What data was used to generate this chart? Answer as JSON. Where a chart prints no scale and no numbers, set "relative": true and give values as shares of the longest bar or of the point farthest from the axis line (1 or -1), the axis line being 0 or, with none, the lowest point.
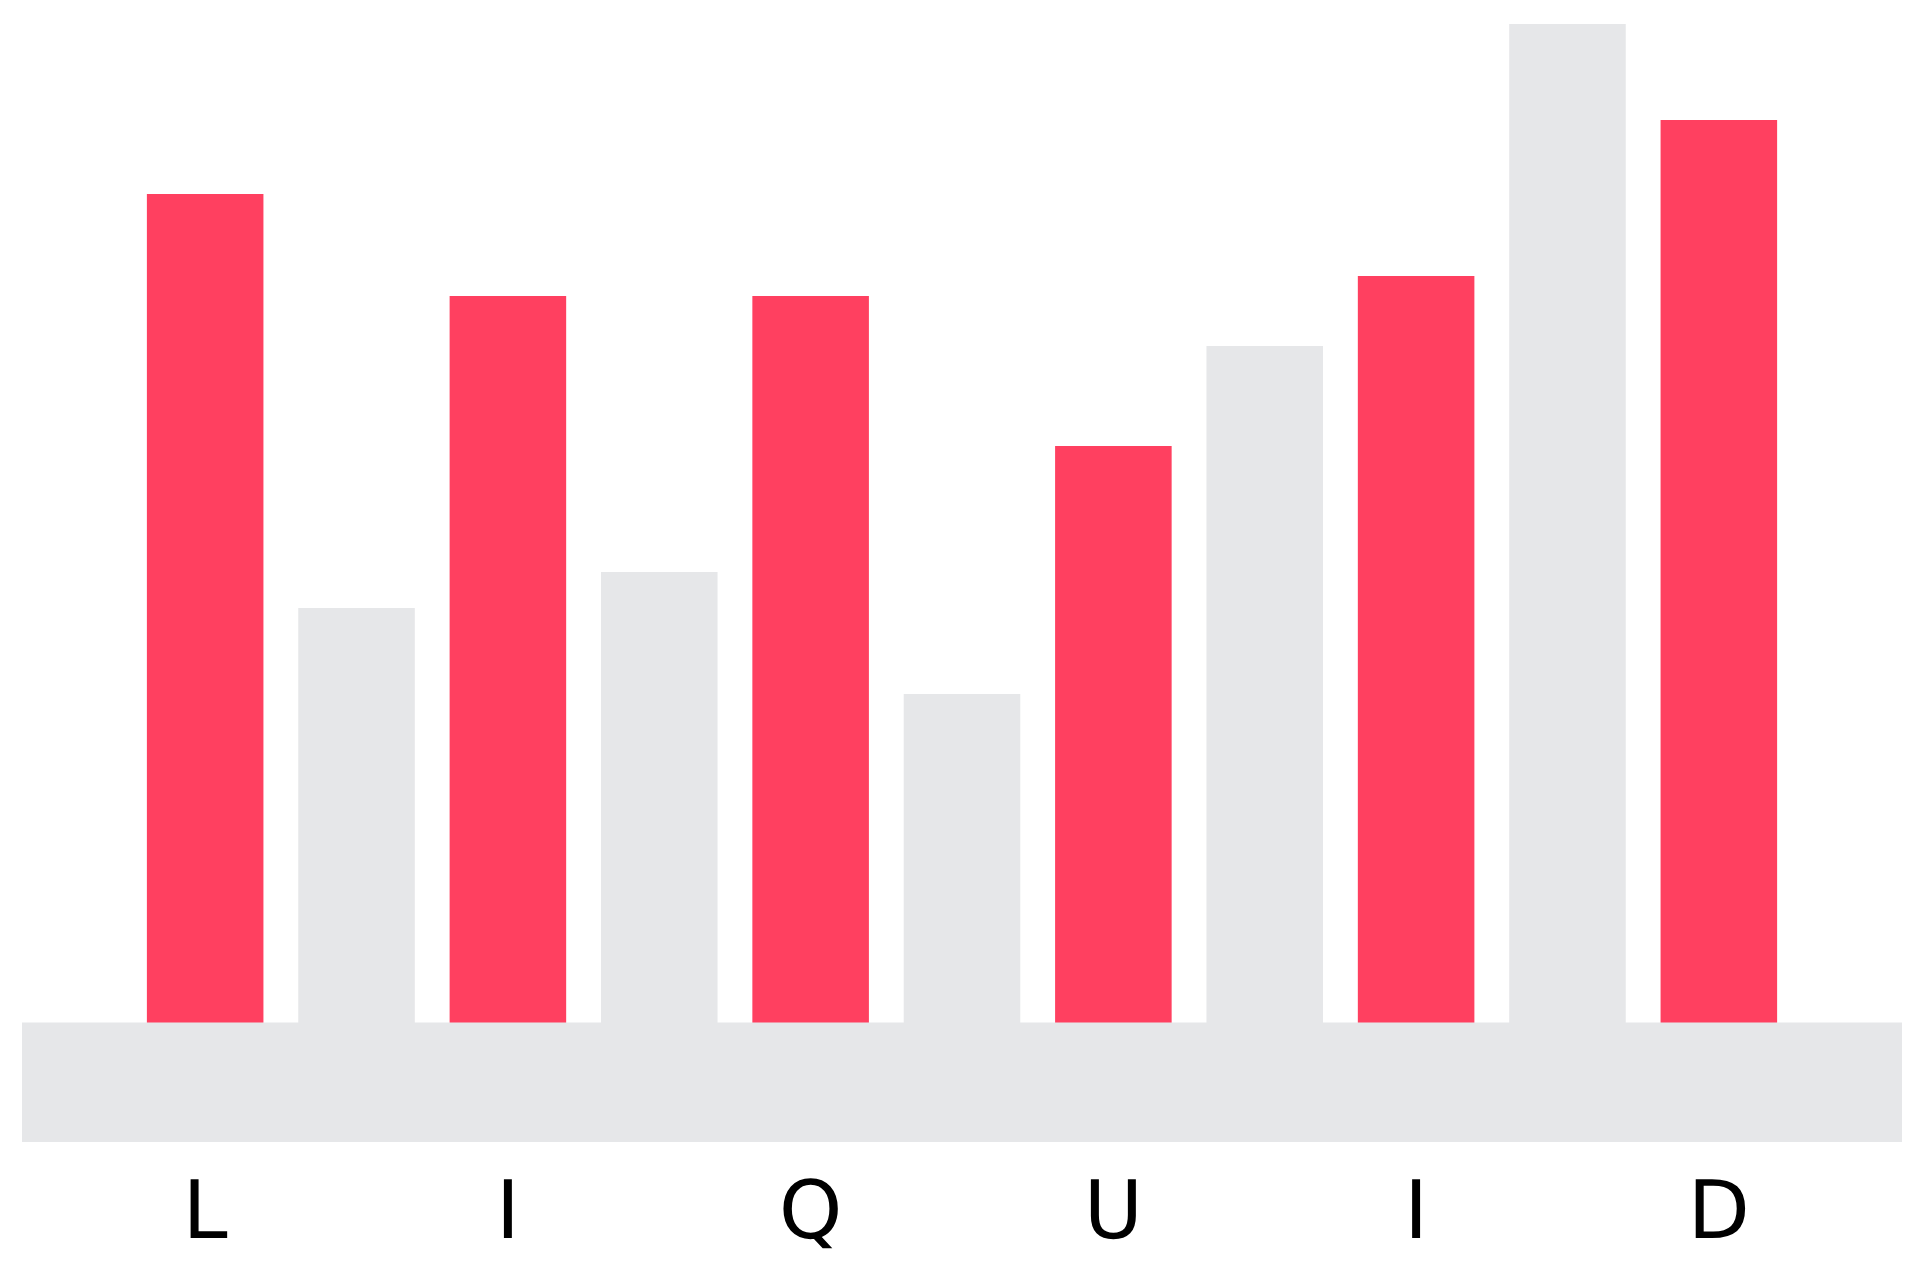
{
  "chart_data": {
    "type": "bar",
    "relative": true,
    "categories": [
      "L",
      null,
      "I",
      null,
      "Q",
      null,
      "U",
      null,
      "I",
      null,
      "D"
    ],
    "values": [
      0.83,
      0.416,
      0.728,
      0.452,
      0.728,
      0.33,
      0.578,
      0.678,
      0.748,
      1,
      0.904
    ],
    "colors": [
      "#ff4060",
      "#e6e7e9",
      "#ff4060",
      "#e6e7e9",
      "#ff4060",
      "#e6e7e9",
      "#ff4060",
      "#e6e7e9",
      "#ff4060",
      "#e6e7e9",
      "#ff4060"
    ],
    "grid": false,
    "legend": false
  }
}
